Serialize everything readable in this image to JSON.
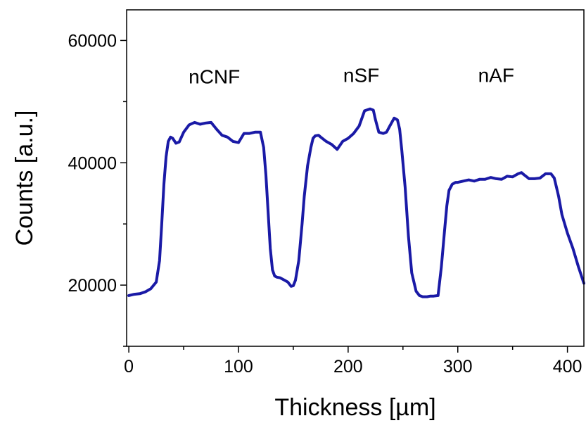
{
  "chart_data": {
    "type": "line",
    "title": "",
    "xlabel": "Thickness [µm]",
    "ylabel": "Counts [a.u.]",
    "xlim": [
      -2,
      415
    ],
    "ylim": [
      10000,
      65000
    ],
    "xticks": [
      0,
      100,
      200,
      300,
      400
    ],
    "yticks": [
      20000,
      40000,
      60000
    ],
    "x_minor_ticks": [
      50,
      150,
      250,
      350
    ],
    "y_minor_ticks": [
      10000,
      30000,
      50000
    ],
    "grid": false,
    "line_color": "#1a1aa6",
    "annotations": [
      {
        "text": "nCNF",
        "x": 78,
        "y": 53000
      },
      {
        "text": "nSF",
        "x": 212,
        "y": 53200
      },
      {
        "text": "nAF",
        "x": 335,
        "y": 53200
      }
    ],
    "series": [
      {
        "x": [
          0,
          5,
          10,
          15,
          20,
          25,
          28,
          30,
          32,
          34,
          36,
          38,
          40,
          43,
          46,
          50,
          55,
          60,
          65,
          70,
          75,
          80,
          85,
          90,
          95,
          100,
          105,
          110,
          115,
          120,
          123,
          125,
          127,
          129,
          131,
          133,
          135,
          138,
          142,
          145,
          148,
          150,
          152,
          155,
          158,
          160,
          163,
          166,
          168,
          170,
          173,
          175,
          180,
          185,
          190,
          195,
          200,
          205,
          210,
          215,
          220,
          223,
          225,
          228,
          232,
          235,
          238,
          242,
          245,
          247,
          249,
          252,
          255,
          258,
          262,
          265,
          268,
          272,
          275,
          278,
          282,
          285,
          288,
          290,
          292,
          295,
          298,
          300,
          305,
          310,
          315,
          320,
          325,
          330,
          335,
          340,
          345,
          350,
          355,
          358,
          360,
          365,
          370,
          375,
          380,
          385,
          388,
          390,
          392,
          395,
          400,
          405,
          410,
          415
        ],
        "y": [
          18300,
          18500,
          18600,
          18900,
          19400,
          20500,
          24000,
          30000,
          36500,
          41000,
          43500,
          44200,
          44000,
          43200,
          43400,
          45000,
          46200,
          46600,
          46300,
          46500,
          46600,
          45500,
          44500,
          44200,
          43500,
          43300,
          44800,
          44800,
          45000,
          45000,
          42500,
          38000,
          32000,
          26000,
          22500,
          21500,
          21300,
          21200,
          20800,
          20500,
          19800,
          19900,
          20800,
          24000,
          30000,
          34500,
          39500,
          42500,
          44000,
          44400,
          44500,
          44200,
          43500,
          43000,
          42200,
          43500,
          44000,
          44800,
          46000,
          48500,
          48800,
          48600,
          47000,
          45000,
          44800,
          45000,
          46000,
          47300,
          47000,
          45500,
          42000,
          36000,
          28000,
          22000,
          19000,
          18300,
          18100,
          18100,
          18200,
          18200,
          18300,
          23000,
          29000,
          33000,
          35500,
          36500,
          36800,
          36800,
          37000,
          37200,
          37000,
          37300,
          37300,
          37600,
          37400,
          37300,
          37800,
          37700,
          38200,
          38400,
          38100,
          37400,
          37400,
          37500,
          38200,
          38200,
          37500,
          36000,
          34500,
          31500,
          28500,
          26000,
          23000,
          20300
        ]
      }
    ]
  }
}
